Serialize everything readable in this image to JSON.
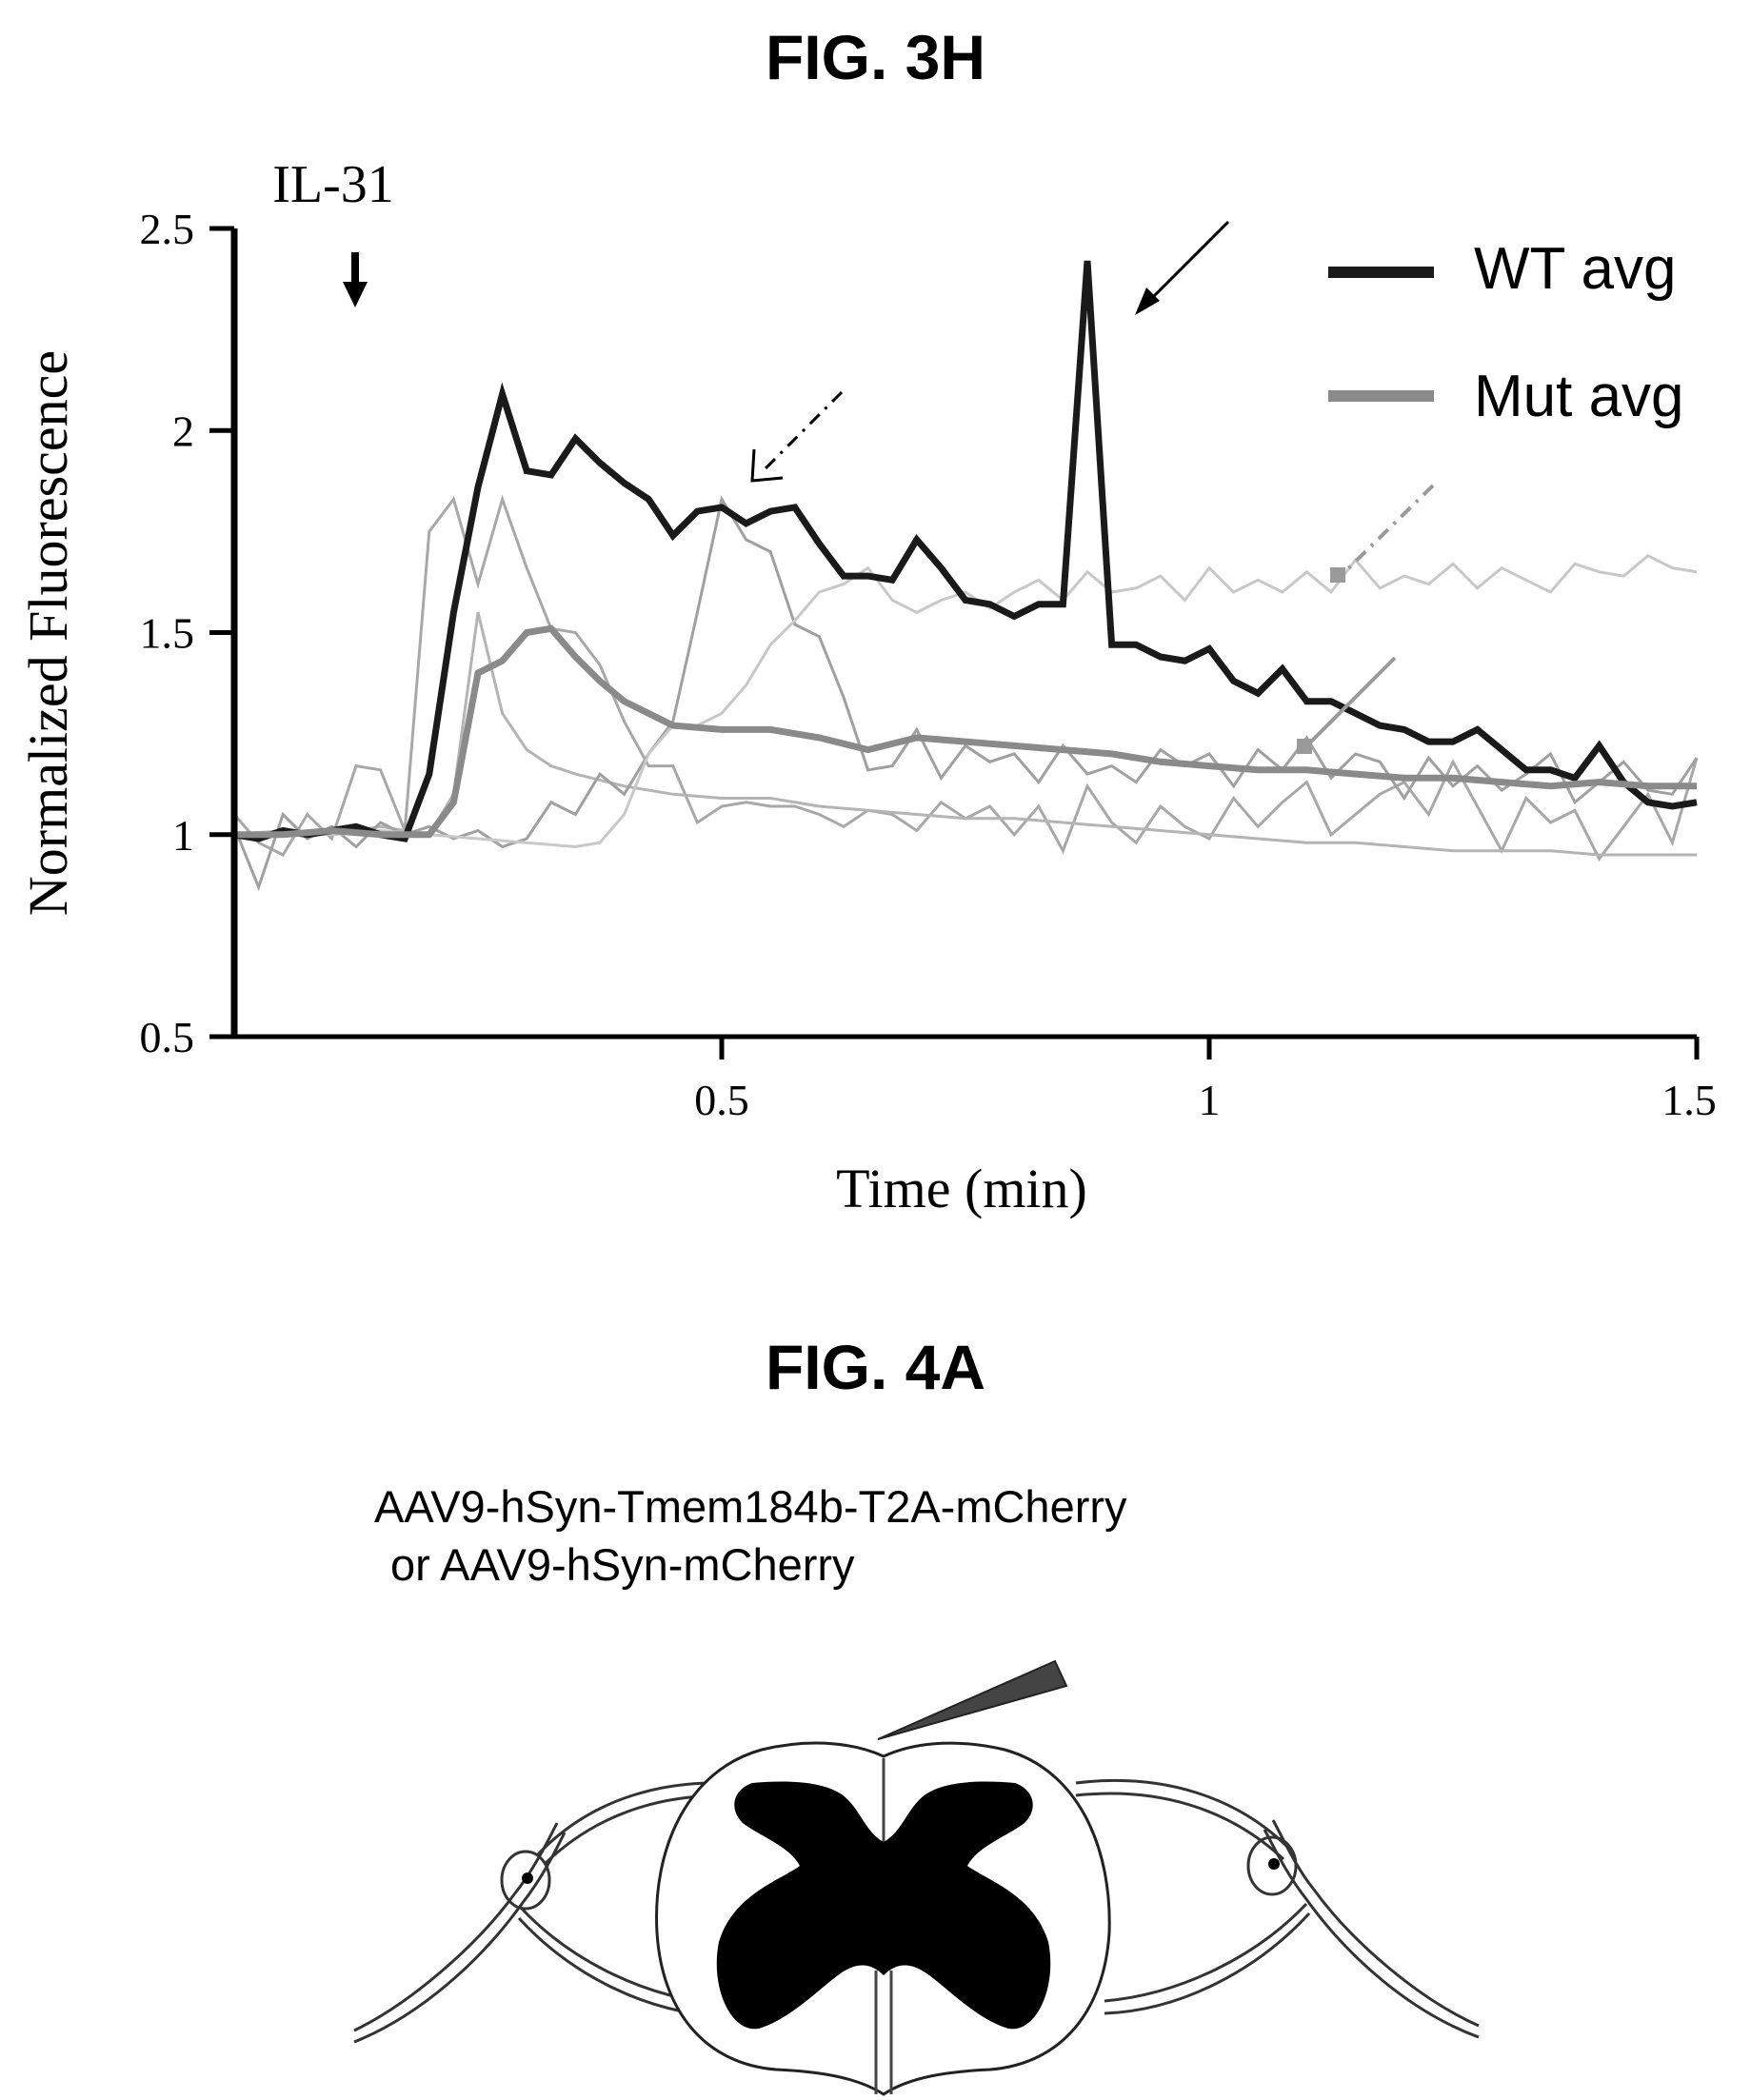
{
  "fig3h": {
    "title": "FIG. 3H",
    "stimulus_label": "IL-31"
  },
  "chart_data": {
    "type": "line",
    "title": "FIG. 3H",
    "xlabel": "Time (min)",
    "ylabel": "Normalized Fluorescence",
    "xlim": [
      0,
      1.5
    ],
    "ylim": [
      0.5,
      2.5
    ],
    "xticks": [
      0.5,
      1,
      1.5
    ],
    "xtick_labels": [
      "0.5",
      "1",
      "1.5"
    ],
    "yticks": [
      0.5,
      1,
      1.5,
      2,
      2.5
    ],
    "ytick_labels": [
      "0.5",
      "1",
      "1.5",
      "2",
      "2.5"
    ],
    "grid": false,
    "legend_position": "top-right",
    "annotation": {
      "text": "IL-31",
      "x": 0.13
    },
    "series": [
      {
        "name": "WT avg",
        "color": "#1a1a1a",
        "width": 7,
        "legend": true,
        "x": [
          0,
          0.025,
          0.05,
          0.075,
          0.1,
          0.125,
          0.15,
          0.175,
          0.2,
          0.225,
          0.25,
          0.275,
          0.3,
          0.325,
          0.35,
          0.375,
          0.4,
          0.425,
          0.45,
          0.475,
          0.5,
          0.525,
          0.55,
          0.575,
          0.6,
          0.625,
          0.65,
          0.675,
          0.7,
          0.725,
          0.75,
          0.775,
          0.8,
          0.825,
          0.85,
          0.875,
          0.9,
          0.925,
          0.95,
          0.975,
          1.0,
          1.025,
          1.05,
          1.075,
          1.1,
          1.125,
          1.15,
          1.175,
          1.2,
          1.225,
          1.25,
          1.275,
          1.3,
          1.325,
          1.35,
          1.375,
          1.4,
          1.425,
          1.45,
          1.475,
          1.5
        ],
        "y": [
          1.0,
          0.99,
          1.01,
          1.0,
          1.01,
          1.02,
          1.0,
          0.99,
          1.15,
          1.55,
          1.86,
          2.09,
          1.9,
          1.89,
          1.98,
          1.92,
          1.87,
          1.83,
          1.74,
          1.8,
          1.81,
          1.77,
          1.8,
          1.81,
          1.72,
          1.64,
          1.64,
          1.63,
          1.73,
          1.66,
          1.58,
          1.57,
          1.54,
          1.57,
          1.57,
          2.42,
          1.47,
          1.47,
          1.44,
          1.43,
          1.46,
          1.38,
          1.35,
          1.41,
          1.33,
          1.33,
          1.3,
          1.27,
          1.26,
          1.23,
          1.23,
          1.26,
          1.21,
          1.16,
          1.16,
          1.14,
          1.22,
          1.13,
          1.08,
          1.07,
          1.08
        ]
      },
      {
        "name": "Mut avg",
        "color": "#8a8a8a",
        "width": 7,
        "legend": true,
        "x": [
          0,
          0.05,
          0.1,
          0.15,
          0.2,
          0.225,
          0.25,
          0.275,
          0.3,
          0.325,
          0.35,
          0.375,
          0.4,
          0.45,
          0.5,
          0.55,
          0.6,
          0.65,
          0.7,
          0.75,
          0.8,
          0.85,
          0.9,
          0.95,
          1.0,
          1.05,
          1.1,
          1.15,
          1.2,
          1.25,
          1.3,
          1.35,
          1.4,
          1.45,
          1.5
        ],
        "y": [
          1.0,
          1.0,
          1.01,
          1.0,
          1.0,
          1.08,
          1.4,
          1.43,
          1.5,
          1.51,
          1.44,
          1.38,
          1.33,
          1.27,
          1.26,
          1.26,
          1.24,
          1.21,
          1.24,
          1.23,
          1.22,
          1.21,
          1.2,
          1.18,
          1.17,
          1.16,
          1.16,
          1.15,
          1.14,
          1.14,
          1.13,
          1.12,
          1.13,
          1.12,
          1.12
        ]
      },
      {
        "name": "",
        "color": "#a8a8a8",
        "width": 3,
        "legend": false,
        "x": [
          0,
          0.025,
          0.05,
          0.075,
          0.1,
          0.125,
          0.15,
          0.175,
          0.2,
          0.225,
          0.25,
          0.275,
          0.3,
          0.325,
          0.35,
          0.375,
          0.4,
          0.425,
          0.45,
          0.475,
          0.5,
          0.525,
          0.55,
          0.575,
          0.6,
          0.625,
          0.65,
          0.675,
          0.7,
          0.725,
          0.75,
          0.775,
          0.8,
          0.825,
          0.85,
          0.875,
          0.9,
          0.925,
          0.95,
          0.975,
          1.0,
          1.025,
          1.05,
          1.075,
          1.1,
          1.125,
          1.15,
          1.175,
          1.2,
          1.225,
          1.25,
          1.275,
          1.3,
          1.325,
          1.35,
          1.375,
          1.4,
          1.425,
          1.45,
          1.475,
          1.5
        ],
        "y": [
          1.05,
          0.98,
          0.95,
          1.05,
          0.99,
          1.17,
          1.16,
          1.01,
          1.75,
          1.83,
          1.62,
          1.83,
          1.66,
          1.51,
          1.5,
          1.42,
          1.28,
          1.17,
          1.17,
          1.03,
          1.07,
          1.08,
          1.07,
          1.07,
          1.05,
          1.02,
          1.06,
          1.05,
          1.01,
          1.08,
          1.04,
          1.07,
          1.0,
          1.07,
          0.96,
          1.12,
          1.03,
          0.98,
          1.07,
          1.02,
          0.99,
          1.09,
          1.02,
          1.08,
          1.13,
          1.0,
          1.05,
          1.1,
          1.13,
          1.05,
          1.18,
          1.07,
          0.96,
          1.09,
          1.03,
          1.06,
          0.94,
          1.02,
          1.1,
          0.98,
          1.19
        ]
      },
      {
        "name": "",
        "color": "#b4b4b4",
        "width": 3,
        "legend": false,
        "x": [
          0,
          0.05,
          0.1,
          0.15,
          0.2,
          0.225,
          0.25,
          0.275,
          0.3,
          0.325,
          0.35,
          0.4,
          0.45,
          0.5,
          0.55,
          0.6,
          0.65,
          0.7,
          0.75,
          0.8,
          0.85,
          0.9,
          0.95,
          1.0,
          1.05,
          1.1,
          1.15,
          1.2,
          1.25,
          1.3,
          1.35,
          1.4,
          1.45,
          1.5
        ],
        "y": [
          1.0,
          1.01,
          1.0,
          1.02,
          1.0,
          1.1,
          1.55,
          1.3,
          1.21,
          1.17,
          1.15,
          1.12,
          1.1,
          1.09,
          1.09,
          1.07,
          1.06,
          1.05,
          1.04,
          1.04,
          1.03,
          1.02,
          1.01,
          1.0,
          0.99,
          0.98,
          0.98,
          0.97,
          0.96,
          0.96,
          0.96,
          0.95,
          0.95,
          0.95
        ]
      },
      {
        "name": "",
        "color": "#a0a0a0",
        "width": 3,
        "legend": false,
        "x": [
          0,
          0.025,
          0.05,
          0.075,
          0.1,
          0.125,
          0.15,
          0.175,
          0.2,
          0.225,
          0.25,
          0.275,
          0.3,
          0.325,
          0.35,
          0.375,
          0.4,
          0.425,
          0.45,
          0.475,
          0.5,
          0.525,
          0.55,
          0.575,
          0.6,
          0.625,
          0.65,
          0.675,
          0.7,
          0.725,
          0.75,
          0.775,
          0.8,
          0.825,
          0.85,
          0.875,
          0.9,
          0.925,
          0.95,
          0.975,
          1.0,
          1.025,
          1.05,
          1.075,
          1.1,
          1.125,
          1.15,
          1.175,
          1.2,
          1.225,
          1.25,
          1.275,
          1.3,
          1.325,
          1.35,
          1.375,
          1.4,
          1.425,
          1.45,
          1.475,
          1.5
        ],
        "y": [
          1.02,
          0.87,
          1.05,
          0.99,
          1.02,
          0.97,
          1.03,
          1.0,
          1.02,
          0.99,
          1.01,
          0.97,
          0.99,
          1.08,
          1.05,
          1.15,
          1.1,
          1.2,
          1.28,
          1.55,
          1.83,
          1.73,
          1.7,
          1.52,
          1.49,
          1.34,
          1.16,
          1.17,
          1.26,
          1.14,
          1.22,
          1.18,
          1.2,
          1.13,
          1.22,
          1.15,
          1.17,
          1.13,
          1.21,
          1.17,
          1.2,
          1.12,
          1.21,
          1.16,
          1.24,
          1.14,
          1.2,
          1.18,
          1.09,
          1.19,
          1.12,
          1.17,
          1.11,
          1.15,
          1.2,
          1.08,
          1.13,
          1.18,
          1.11,
          1.1,
          1.19
        ]
      },
      {
        "name": "",
        "color": "#c8c8c8",
        "width": 3,
        "legend": false,
        "x": [
          0,
          0.05,
          0.1,
          0.15,
          0.2,
          0.25,
          0.3,
          0.35,
          0.375,
          0.4,
          0.425,
          0.45,
          0.475,
          0.5,
          0.525,
          0.55,
          0.575,
          0.6,
          0.625,
          0.65,
          0.675,
          0.7,
          0.725,
          0.75,
          0.775,
          0.8,
          0.825,
          0.85,
          0.875,
          0.9,
          0.925,
          0.95,
          0.975,
          1.0,
          1.025,
          1.05,
          1.075,
          1.1,
          1.125,
          1.15,
          1.175,
          1.2,
          1.225,
          1.25,
          1.275,
          1.3,
          1.325,
          1.35,
          1.375,
          1.4,
          1.425,
          1.45,
          1.475,
          1.5
        ],
        "y": [
          1.0,
          1.01,
          1.0,
          1.01,
          1.0,
          0.99,
          0.98,
          0.97,
          0.98,
          1.05,
          1.2,
          1.27,
          1.27,
          1.3,
          1.37,
          1.47,
          1.53,
          1.6,
          1.62,
          1.66,
          1.58,
          1.55,
          1.58,
          1.6,
          1.56,
          1.6,
          1.63,
          1.58,
          1.65,
          1.6,
          1.61,
          1.64,
          1.58,
          1.66,
          1.6,
          1.63,
          1.6,
          1.65,
          1.6,
          1.68,
          1.61,
          1.64,
          1.62,
          1.67,
          1.61,
          1.66,
          1.63,
          1.6,
          1.67,
          1.65,
          1.64,
          1.69,
          1.66,
          1.65
        ]
      }
    ]
  },
  "fig4a": {
    "title": "FIG. 4A",
    "caption_line1": "AAV9-hSyn-Tmem184b-T2A-mCherry",
    "caption_line2": "or AAV9-hSyn-mCherry"
  }
}
